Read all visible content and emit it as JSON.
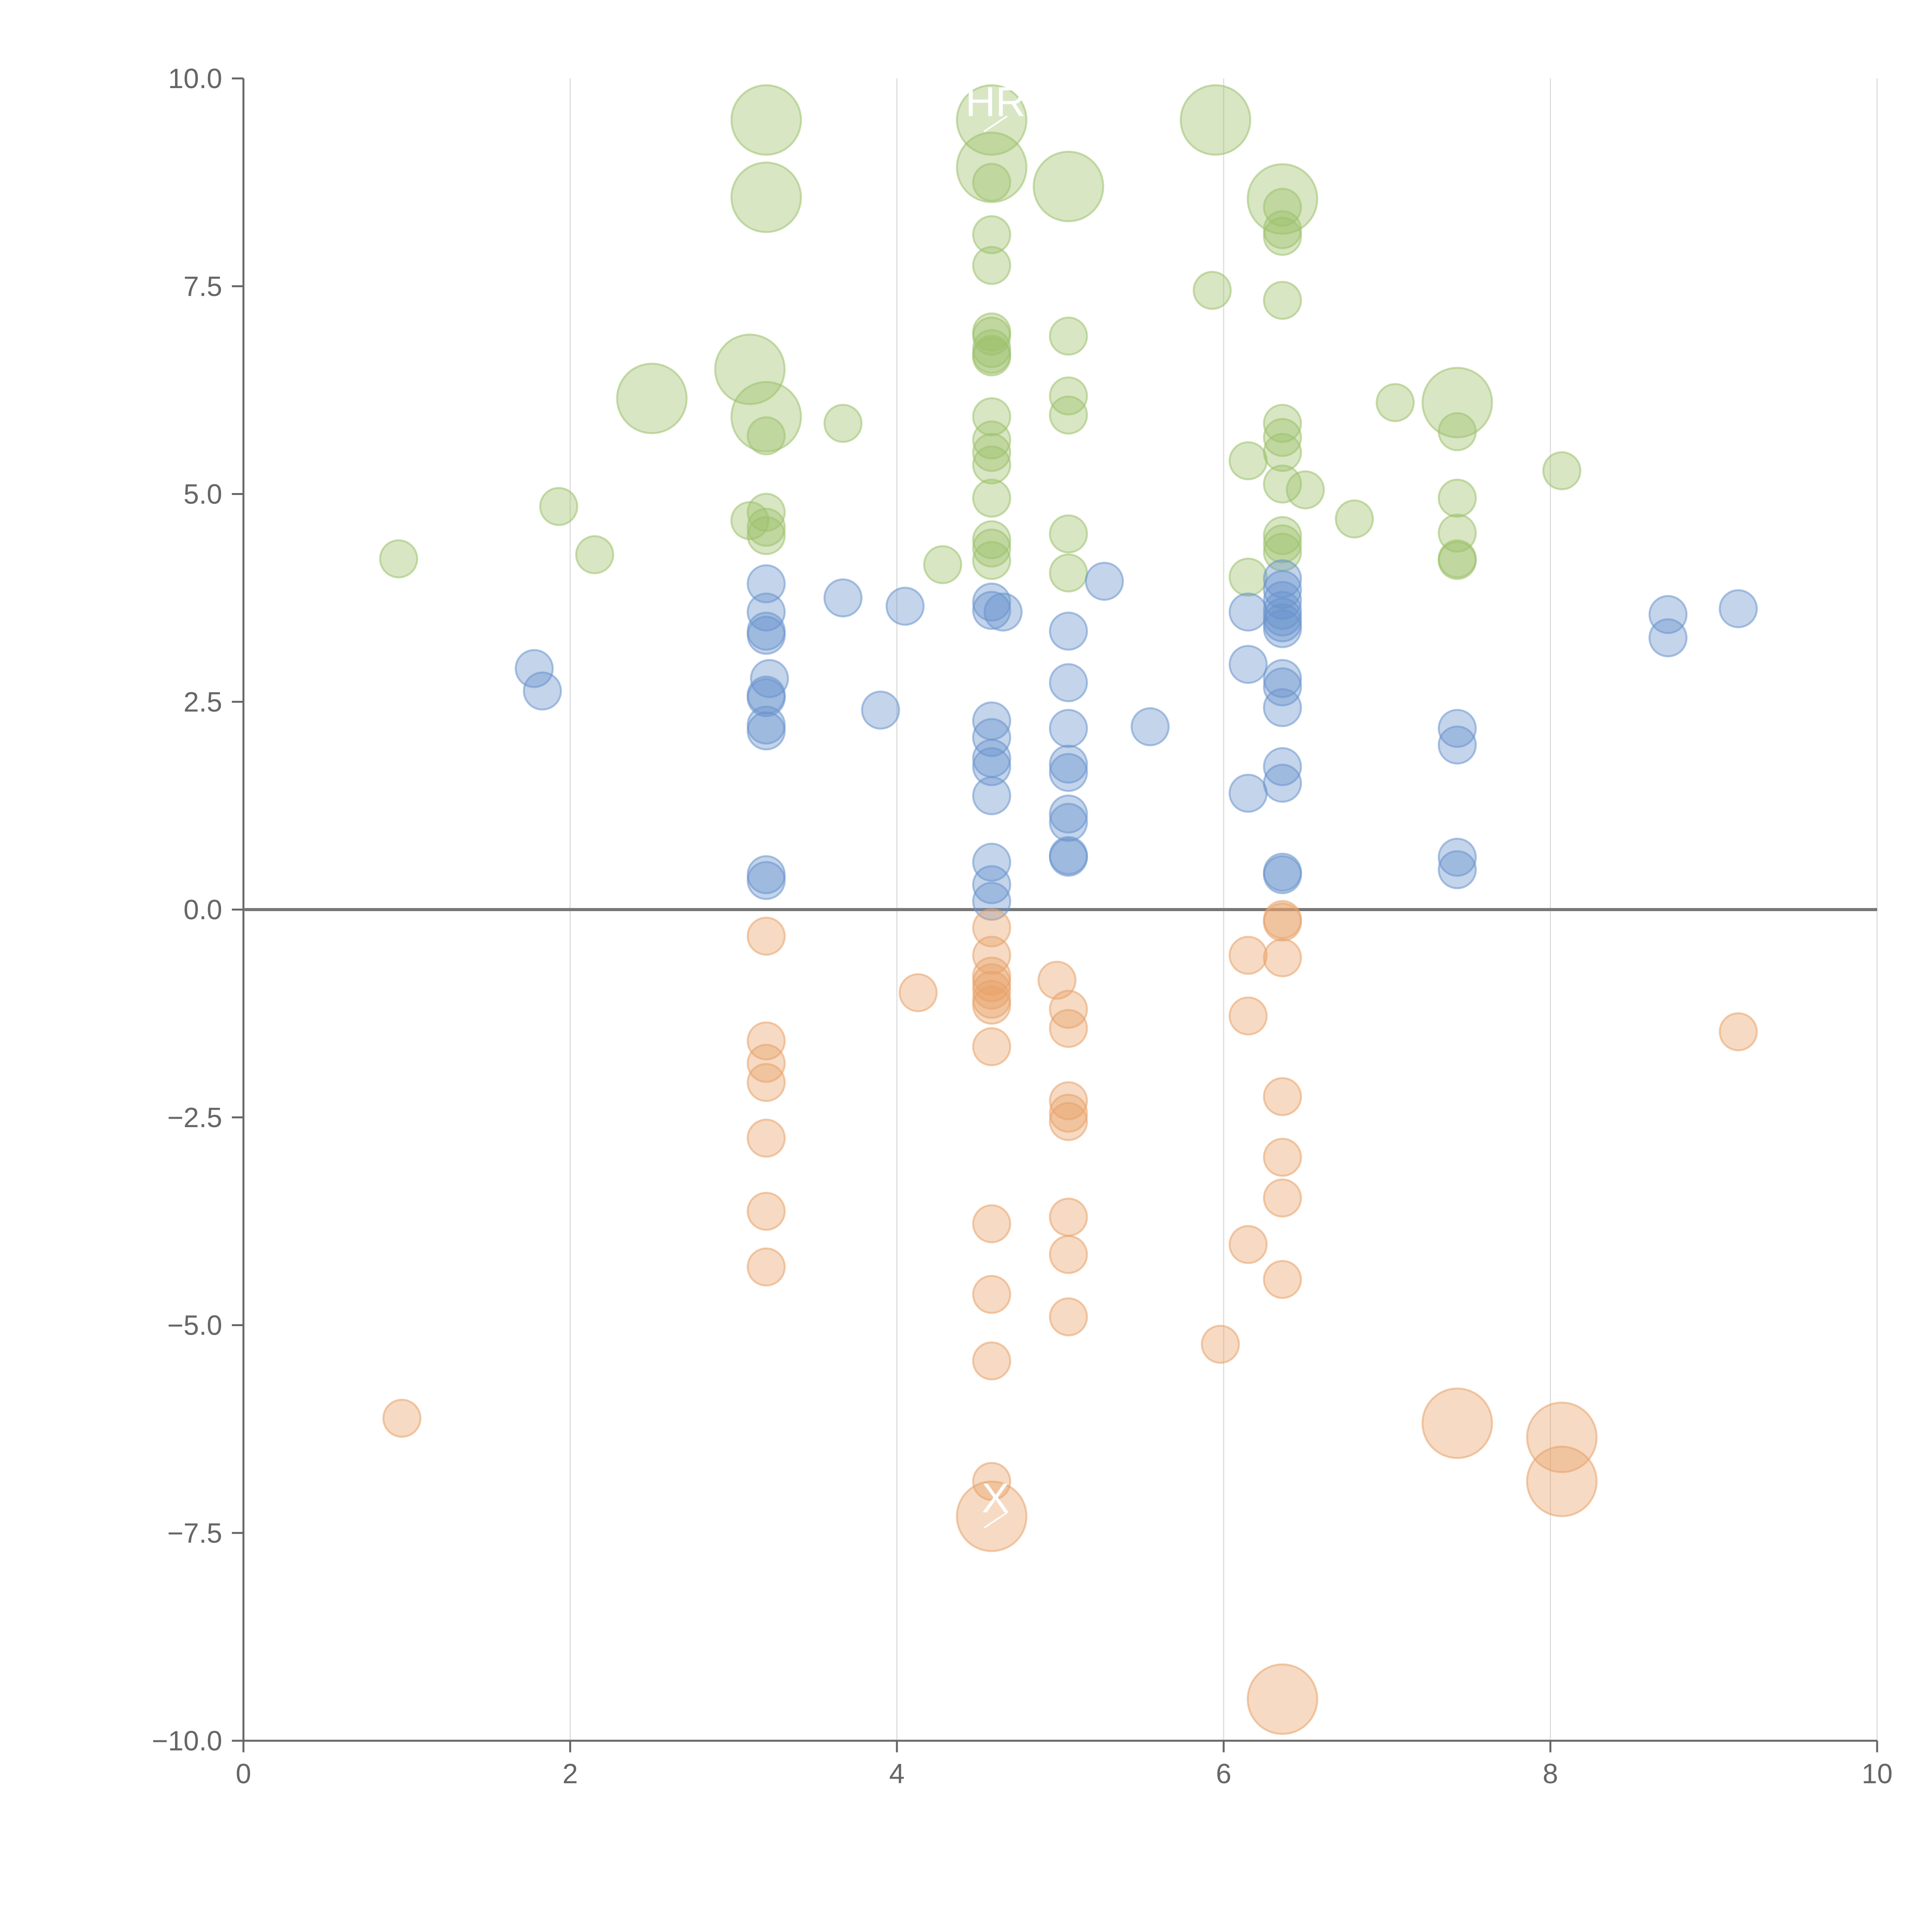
{
  "chart_data": {
    "type": "scatter",
    "title": "",
    "xlabel": "",
    "ylabel": "",
    "xlim": [
      0,
      10
    ],
    "ylim": [
      -10,
      10
    ],
    "x_ticks": [
      "0",
      "2",
      "4",
      "6",
      "8",
      "10"
    ],
    "y_ticks": [
      "−10.0",
      "−7.5",
      "−5.0",
      "−2.5",
      "0.0",
      "2.5",
      "5.0",
      "7.5",
      "10.0"
    ],
    "x_tick_values": [
      0,
      2,
      4,
      6,
      8,
      10
    ],
    "y_tick_values": [
      -10,
      -7.5,
      -5,
      -2.5,
      0,
      2.5,
      5,
      7.5,
      10
    ],
    "grid": "vertical",
    "zero_line": true,
    "legend": "none",
    "series": [
      {
        "color": "#9dc16b",
        "points": [
          {
            "x": 3.2,
            "y": 9.5,
            "size": 2
          },
          {
            "x": 4.58,
            "y": 9.5,
            "size": 2,
            "label": "HR"
          },
          {
            "x": 5.95,
            "y": 9.5,
            "size": 2
          },
          {
            "x": 3.2,
            "y": 8.57,
            "size": 2
          },
          {
            "x": 4.58,
            "y": 8.93,
            "size": 2
          },
          {
            "x": 5.05,
            "y": 8.7,
            "size": 2
          },
          {
            "x": 6.36,
            "y": 8.55,
            "size": 2
          },
          {
            "x": 3.1,
            "y": 6.5,
            "size": 2
          },
          {
            "x": 2.5,
            "y": 6.15,
            "size": 2
          },
          {
            "x": 3.2,
            "y": 5.93,
            "size": 2
          },
          {
            "x": 7.43,
            "y": 6.1,
            "size": 2
          },
          {
            "x": 4.58,
            "y": 8.75,
            "size": 1
          },
          {
            "x": 4.58,
            "y": 8.12,
            "size": 1
          },
          {
            "x": 4.58,
            "y": 7.75,
            "size": 1
          },
          {
            "x": 5.93,
            "y": 7.45,
            "size": 1
          },
          {
            "x": 6.36,
            "y": 7.33,
            "size": 1
          },
          {
            "x": 6.36,
            "y": 8.45,
            "size": 1
          },
          {
            "x": 6.36,
            "y": 8.18,
            "size": 1
          },
          {
            "x": 6.36,
            "y": 8.1,
            "size": 1
          },
          {
            "x": 4.58,
            "y": 6.95,
            "size": 1
          },
          {
            "x": 4.58,
            "y": 6.9,
            "size": 1
          },
          {
            "x": 4.58,
            "y": 6.75,
            "size": 1
          },
          {
            "x": 4.58,
            "y": 6.68,
            "size": 1
          },
          {
            "x": 4.58,
            "y": 6.65,
            "size": 1
          },
          {
            "x": 5.05,
            "y": 6.9,
            "size": 1
          },
          {
            "x": 5.05,
            "y": 6.18,
            "size": 1
          },
          {
            "x": 5.05,
            "y": 5.95,
            "size": 1
          },
          {
            "x": 4.58,
            "y": 5.93,
            "size": 1
          },
          {
            "x": 4.58,
            "y": 5.65,
            "size": 1
          },
          {
            "x": 4.58,
            "y": 5.5,
            "size": 1
          },
          {
            "x": 4.58,
            "y": 5.35,
            "size": 1
          },
          {
            "x": 4.58,
            "y": 4.95,
            "size": 1
          },
          {
            "x": 4.58,
            "y": 4.45,
            "size": 1
          },
          {
            "x": 4.58,
            "y": 4.35,
            "size": 1
          },
          {
            "x": 4.58,
            "y": 4.2,
            "size": 1
          },
          {
            "x": 3.67,
            "y": 5.85,
            "size": 1
          },
          {
            "x": 3.2,
            "y": 5.7,
            "size": 1
          },
          {
            "x": 6.36,
            "y": 5.85,
            "size": 1
          },
          {
            "x": 6.36,
            "y": 5.68,
            "size": 1
          },
          {
            "x": 6.36,
            "y": 5.5,
            "size": 1
          },
          {
            "x": 6.15,
            "y": 5.4,
            "size": 1
          },
          {
            "x": 6.36,
            "y": 5.12,
            "size": 1
          },
          {
            "x": 6.5,
            "y": 5.05,
            "size": 1
          },
          {
            "x": 7.05,
            "y": 6.1,
            "size": 1
          },
          {
            "x": 7.43,
            "y": 5.75,
            "size": 1
          },
          {
            "x": 8.07,
            "y": 5.28,
            "size": 1
          },
          {
            "x": 7.43,
            "y": 4.95,
            "size": 1
          },
          {
            "x": 6.8,
            "y": 4.7,
            "size": 1
          },
          {
            "x": 7.43,
            "y": 4.53,
            "size": 1
          },
          {
            "x": 7.43,
            "y": 4.2,
            "size": 1
          },
          {
            "x": 7.43,
            "y": 4.22,
            "size": 1
          },
          {
            "x": 6.36,
            "y": 4.5,
            "size": 1
          },
          {
            "x": 6.36,
            "y": 4.4,
            "size": 1
          },
          {
            "x": 6.36,
            "y": 4.3,
            "size": 1
          },
          {
            "x": 6.15,
            "y": 4.0,
            "size": 1
          },
          {
            "x": 5.05,
            "y": 4.52,
            "size": 1
          },
          {
            "x": 5.05,
            "y": 4.05,
            "size": 1
          },
          {
            "x": 4.28,
            "y": 4.15,
            "size": 1
          },
          {
            "x": 3.2,
            "y": 4.78,
            "size": 1
          },
          {
            "x": 3.1,
            "y": 4.68,
            "size": 1
          },
          {
            "x": 3.2,
            "y": 4.6,
            "size": 1
          },
          {
            "x": 3.2,
            "y": 4.5,
            "size": 1
          },
          {
            "x": 1.93,
            "y": 4.85,
            "size": 1
          },
          {
            "x": 2.15,
            "y": 4.27,
            "size": 1
          },
          {
            "x": 0.95,
            "y": 4.22,
            "size": 1
          }
        ]
      },
      {
        "color": "#6a93cc",
        "points": [
          {
            "x": 3.2,
            "y": 3.92
          },
          {
            "x": 3.2,
            "y": 3.58
          },
          {
            "x": 3.2,
            "y": 3.35
          },
          {
            "x": 3.2,
            "y": 3.3
          },
          {
            "x": 3.22,
            "y": 2.78
          },
          {
            "x": 3.2,
            "y": 2.58
          },
          {
            "x": 3.2,
            "y": 2.55
          },
          {
            "x": 3.2,
            "y": 2.22
          },
          {
            "x": 3.2,
            "y": 2.15
          },
          {
            "x": 3.2,
            "y": 0.42
          },
          {
            "x": 3.2,
            "y": 0.35
          },
          {
            "x": 3.67,
            "y": 3.75
          },
          {
            "x": 4.05,
            "y": 3.65
          },
          {
            "x": 3.9,
            "y": 2.4
          },
          {
            "x": 1.78,
            "y": 2.9
          },
          {
            "x": 1.83,
            "y": 2.63
          },
          {
            "x": 4.58,
            "y": 3.7
          },
          {
            "x": 4.58,
            "y": 3.6
          },
          {
            "x": 4.65,
            "y": 3.58
          },
          {
            "x": 4.58,
            "y": 2.27
          },
          {
            "x": 4.58,
            "y": 2.07
          },
          {
            "x": 4.58,
            "y": 1.82
          },
          {
            "x": 4.58,
            "y": 1.72
          },
          {
            "x": 4.58,
            "y": 1.37
          },
          {
            "x": 4.58,
            "y": 0.57
          },
          {
            "x": 4.58,
            "y": 0.3
          },
          {
            "x": 4.58,
            "y": 0.1
          },
          {
            "x": 5.05,
            "y": 3.35
          },
          {
            "x": 5.27,
            "y": 3.95
          },
          {
            "x": 5.05,
            "y": 2.73
          },
          {
            "x": 5.05,
            "y": 2.18
          },
          {
            "x": 5.05,
            "y": 1.75
          },
          {
            "x": 5.05,
            "y": 1.65
          },
          {
            "x": 5.05,
            "y": 1.15
          },
          {
            "x": 5.05,
            "y": 1.05
          },
          {
            "x": 5.05,
            "y": 0.65
          },
          {
            "x": 5.05,
            "y": 0.63
          },
          {
            "x": 5.55,
            "y": 2.2
          },
          {
            "x": 6.36,
            "y": 3.98
          },
          {
            "x": 6.36,
            "y": 3.85
          },
          {
            "x": 6.36,
            "y": 3.72
          },
          {
            "x": 6.36,
            "y": 3.6
          },
          {
            "x": 6.36,
            "y": 3.52
          },
          {
            "x": 6.36,
            "y": 3.45
          },
          {
            "x": 6.36,
            "y": 3.38
          },
          {
            "x": 6.15,
            "y": 3.58
          },
          {
            "x": 6.15,
            "y": 2.95
          },
          {
            "x": 6.36,
            "y": 2.78
          },
          {
            "x": 6.36,
            "y": 2.68
          },
          {
            "x": 6.36,
            "y": 2.43
          },
          {
            "x": 6.36,
            "y": 1.72
          },
          {
            "x": 6.36,
            "y": 1.52
          },
          {
            "x": 6.15,
            "y": 1.4
          },
          {
            "x": 6.36,
            "y": 0.45
          },
          {
            "x": 6.36,
            "y": 0.42
          },
          {
            "x": 7.43,
            "y": 2.18
          },
          {
            "x": 7.43,
            "y": 1.98
          },
          {
            "x": 7.43,
            "y": 0.63
          },
          {
            "x": 7.43,
            "y": 0.48
          },
          {
            "x": 8.72,
            "y": 3.55
          },
          {
            "x": 8.72,
            "y": 3.27
          },
          {
            "x": 9.15,
            "y": 3.62
          }
        ]
      },
      {
        "color": "#e8a36a",
        "points": [
          {
            "x": 3.2,
            "y": -0.32,
            "size": 1
          },
          {
            "x": 3.2,
            "y": -1.58,
            "size": 1
          },
          {
            "x": 3.2,
            "y": -1.85,
            "size": 1
          },
          {
            "x": 3.2,
            "y": -2.08,
            "size": 1
          },
          {
            "x": 3.2,
            "y": -2.75,
            "size": 1
          },
          {
            "x": 3.2,
            "y": -3.63,
            "size": 1
          },
          {
            "x": 3.2,
            "y": -4.3,
            "size": 1
          },
          {
            "x": 4.13,
            "y": -1.0,
            "size": 1
          },
          {
            "x": 4.58,
            "y": -0.22,
            "size": 1
          },
          {
            "x": 4.58,
            "y": -0.55,
            "size": 1
          },
          {
            "x": 4.58,
            "y": -0.8,
            "size": 1
          },
          {
            "x": 4.58,
            "y": -0.88,
            "size": 1
          },
          {
            "x": 4.58,
            "y": -0.97,
            "size": 1
          },
          {
            "x": 4.58,
            "y": -1.08,
            "size": 1
          },
          {
            "x": 4.58,
            "y": -1.15,
            "size": 1
          },
          {
            "x": 4.58,
            "y": -1.65,
            "size": 1
          },
          {
            "x": 4.58,
            "y": -3.78,
            "size": 1
          },
          {
            "x": 4.58,
            "y": -4.63,
            "size": 1
          },
          {
            "x": 4.58,
            "y": -5.43,
            "size": 1
          },
          {
            "x": 4.58,
            "y": -6.88,
            "size": 1
          },
          {
            "x": 4.98,
            "y": -0.85,
            "size": 1
          },
          {
            "x": 5.05,
            "y": -1.2,
            "size": 1
          },
          {
            "x": 5.05,
            "y": -1.43,
            "size": 1
          },
          {
            "x": 5.05,
            "y": -2.3,
            "size": 1
          },
          {
            "x": 5.05,
            "y": -2.45,
            "size": 1
          },
          {
            "x": 5.05,
            "y": -2.55,
            "size": 1
          },
          {
            "x": 5.05,
            "y": -3.7,
            "size": 1
          },
          {
            "x": 5.05,
            "y": -4.15,
            "size": 1
          },
          {
            "x": 5.05,
            "y": -4.9,
            "size": 1
          },
          {
            "x": 5.98,
            "y": -5.23,
            "size": 1
          },
          {
            "x": 6.15,
            "y": -0.55,
            "size": 1
          },
          {
            "x": 6.15,
            "y": -1.28,
            "size": 1
          },
          {
            "x": 6.15,
            "y": -4.03,
            "size": 1
          },
          {
            "x": 6.36,
            "y": -0.12,
            "size": 1
          },
          {
            "x": 6.36,
            "y": -0.15,
            "size": 1
          },
          {
            "x": 6.36,
            "y": -0.58,
            "size": 1
          },
          {
            "x": 6.36,
            "y": -2.25,
            "size": 1
          },
          {
            "x": 6.36,
            "y": -2.98,
            "size": 1
          },
          {
            "x": 6.36,
            "y": -3.47,
            "size": 1
          },
          {
            "x": 6.36,
            "y": -4.45,
            "size": 1
          },
          {
            "x": 0.97,
            "y": -6.12,
            "size": 1
          },
          {
            "x": 9.15,
            "y": -1.47,
            "size": 1
          },
          {
            "x": 4.58,
            "y": -7.3,
            "size": 2,
            "label": "X"
          },
          {
            "x": 7.43,
            "y": -6.18,
            "size": 2
          },
          {
            "x": 8.07,
            "y": -6.35,
            "size": 2
          },
          {
            "x": 8.07,
            "y": -6.88,
            "size": 2
          },
          {
            "x": 6.36,
            "y": -9.5,
            "size": 2
          }
        ]
      }
    ]
  }
}
